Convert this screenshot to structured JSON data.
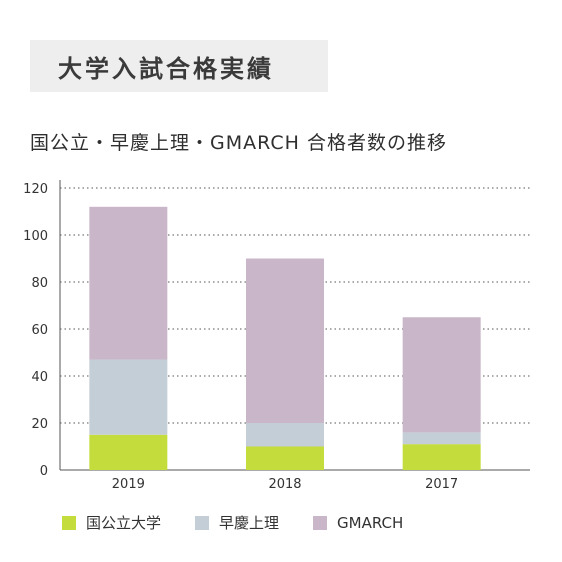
{
  "header": {
    "title": "大学入試合格実績"
  },
  "chart_data": {
    "type": "bar",
    "stacked": true,
    "title": "国公立・早慶上理・GMARCH 合格者数の推移",
    "categories": [
      "2019",
      "2018",
      "2017"
    ],
    "series": [
      {
        "name": "国公立大学",
        "color": "#c4dc3c",
        "values": [
          15,
          10,
          11
        ]
      },
      {
        "name": "早慶上理",
        "color": "#c4ced6",
        "values": [
          32,
          10,
          5
        ]
      },
      {
        "name": "GMARCH",
        "color": "#c9b7c9",
        "values": [
          65,
          70,
          49
        ]
      }
    ],
    "totals": [
      112,
      90,
      65
    ],
    "ylim": [
      0,
      120
    ],
    "yticks": [
      0,
      20,
      40,
      60,
      80,
      100,
      120
    ],
    "grid": true,
    "legend_position": "bottom"
  }
}
